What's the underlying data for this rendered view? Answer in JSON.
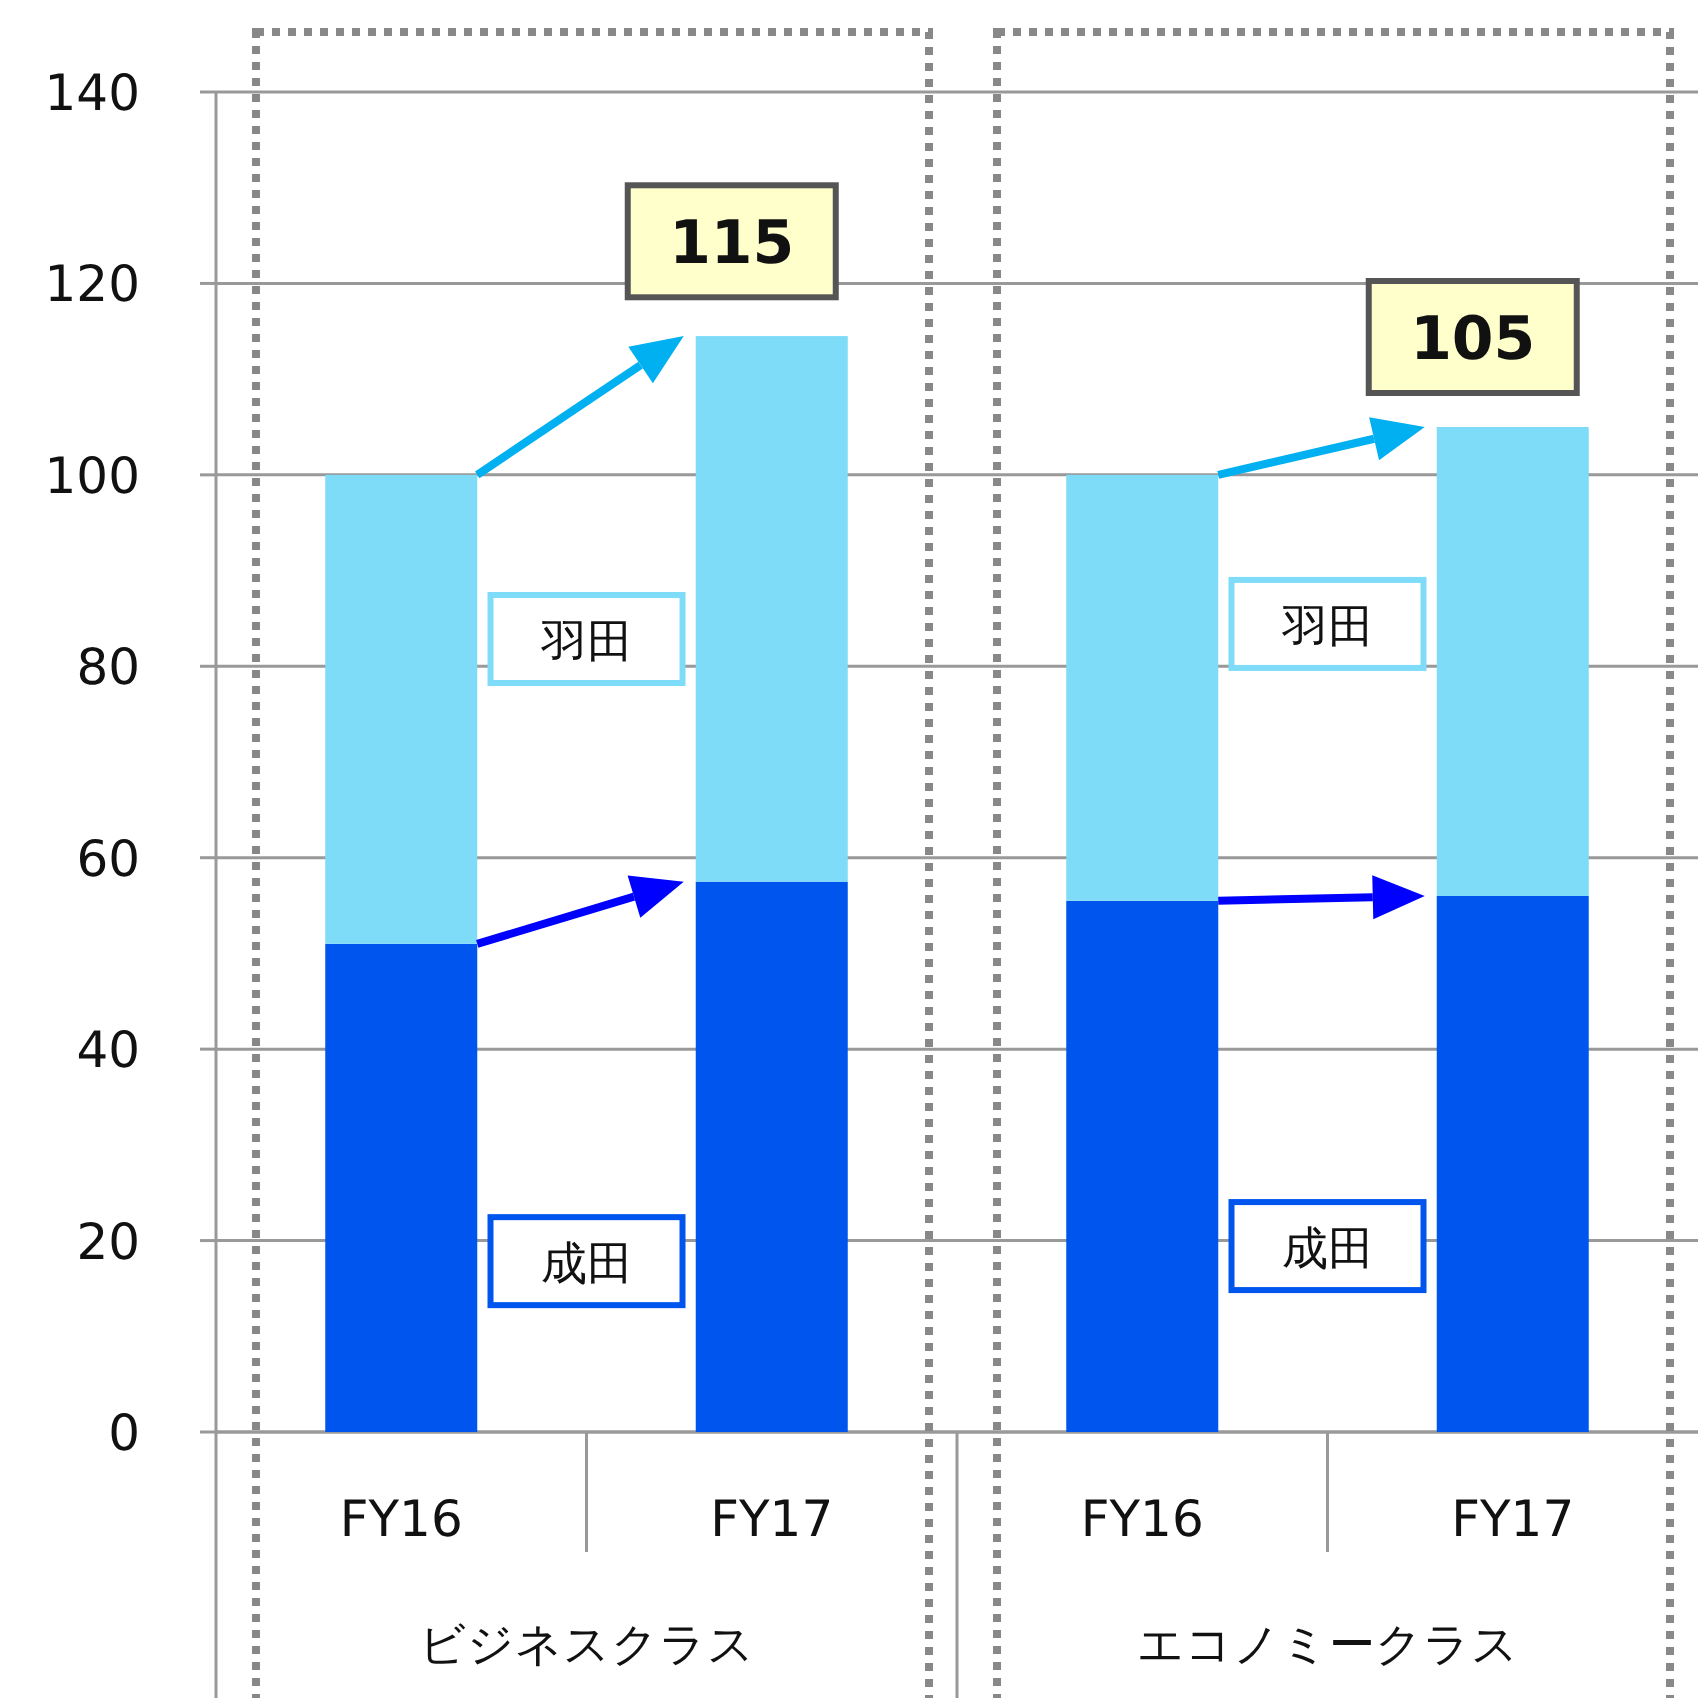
{
  "chart_data": {
    "type": "bar",
    "stacked": true,
    "categories": [
      "FY16",
      "FY17",
      "FY16",
      "FY17"
    ],
    "series": [
      {
        "name": "成田",
        "color": "#0055ee",
        "values": [
          51,
          57.5,
          55.5,
          56
        ]
      },
      {
        "name": "羽田",
        "color": "#7fdcf8",
        "values": [
          49,
          57,
          44.5,
          49
        ]
      }
    ],
    "ylim": [
      0,
      140
    ],
    "yticks": [
      0,
      20,
      40,
      60,
      80,
      100,
      120,
      140
    ],
    "grid": "y",
    "annotations": [
      {
        "text": "115",
        "y": 115
      },
      {
        "text": "105",
        "y": 105
      },
      "ビジネスクラス",
      "エコノミークラス"
    ]
  }
}
